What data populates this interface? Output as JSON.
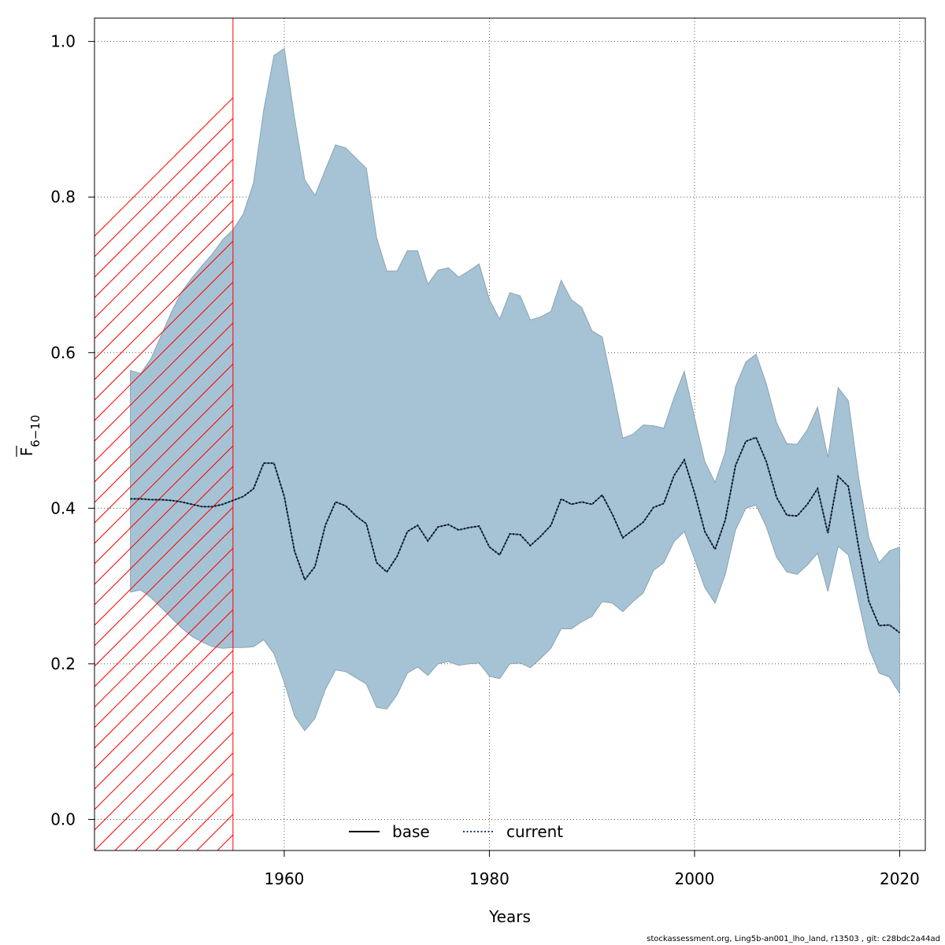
{
  "chart_data": {
    "type": "area",
    "title": "",
    "xlabel": "Years",
    "ylabel_main": "F",
    "ylabel_sub": "6−10",
    "xlim": [
      1941.5,
      2022.5
    ],
    "ylim": [
      -0.04,
      1.03
    ],
    "xticks": [
      1960,
      1980,
      2000,
      2020
    ],
    "yticks": [
      0.0,
      0.2,
      0.4,
      0.6,
      0.8,
      1.0
    ],
    "ytick_labels": [
      "0.0",
      "0.2",
      "0.4",
      "0.6",
      "0.8",
      "1.0"
    ],
    "grid": true,
    "hatched_region": {
      "x_start": 1941.5,
      "x_end": 1955,
      "color": "#ff0000"
    },
    "band_color": "#a5c3d5",
    "legend": {
      "placement": "bottom-center",
      "entries": [
        {
          "label": "base",
          "color": "#000000",
          "style": "solid"
        },
        {
          "label": "current",
          "color": "#1f3f6e",
          "style": "dotted"
        }
      ]
    },
    "x": [
      1945,
      1946,
      1947,
      1948,
      1949,
      1950,
      1951,
      1952,
      1953,
      1954,
      1955,
      1956,
      1957,
      1958,
      1959,
      1960,
      1961,
      1962,
      1963,
      1964,
      1965,
      1966,
      1967,
      1968,
      1969,
      1970,
      1971,
      1972,
      1973,
      1974,
      1975,
      1976,
      1977,
      1978,
      1979,
      1980,
      1981,
      1982,
      1983,
      1984,
      1985,
      1986,
      1987,
      1988,
      1989,
      1990,
      1991,
      1992,
      1993,
      1994,
      1995,
      1996,
      1997,
      1998,
      1999,
      2000,
      2001,
      2002,
      2003,
      2004,
      2005,
      2006,
      2007,
      2008,
      2009,
      2010,
      2011,
      2012,
      2013,
      2014,
      2015,
      2016,
      2017,
      2018,
      2019,
      2020
    ],
    "series": [
      {
        "name": "current",
        "values": [
          0.412,
          0.412,
          0.411,
          0.411,
          0.41,
          0.408,
          0.405,
          0.402,
          0.402,
          0.405,
          0.41,
          0.415,
          0.425,
          0.458,
          0.458,
          0.415,
          0.345,
          0.308,
          0.325,
          0.378,
          0.408,
          0.403,
          0.39,
          0.38,
          0.33,
          0.318,
          0.338,
          0.37,
          0.378,
          0.358,
          0.376,
          0.379,
          0.372,
          0.375,
          0.377,
          0.35,
          0.34,
          0.367,
          0.366,
          0.352,
          0.364,
          0.378,
          0.412,
          0.405,
          0.408,
          0.405,
          0.417,
          0.392,
          0.362,
          0.372,
          0.382,
          0.401,
          0.406,
          0.442,
          0.462,
          0.42,
          0.37,
          0.347,
          0.385,
          0.455,
          0.486,
          0.491,
          0.46,
          0.414,
          0.391,
          0.39,
          0.405,
          0.425,
          0.368,
          0.441,
          0.428,
          0.35,
          0.28,
          0.249,
          0.25,
          0.24
        ]
      },
      {
        "name": "upper",
        "values": [
          0.577,
          0.573,
          0.592,
          0.622,
          0.652,
          0.678,
          0.696,
          0.712,
          0.727,
          0.745,
          0.758,
          0.778,
          0.818,
          0.912,
          0.982,
          0.991,
          0.902,
          0.822,
          0.802,
          0.835,
          0.867,
          0.863,
          0.85,
          0.837,
          0.748,
          0.705,
          0.705,
          0.731,
          0.731,
          0.688,
          0.706,
          0.709,
          0.697,
          0.705,
          0.714,
          0.668,
          0.643,
          0.677,
          0.673,
          0.642,
          0.646,
          0.653,
          0.693,
          0.668,
          0.658,
          0.628,
          0.62,
          0.558,
          0.49,
          0.495,
          0.507,
          0.506,
          0.503,
          0.542,
          0.576,
          0.517,
          0.46,
          0.433,
          0.472,
          0.556,
          0.588,
          0.598,
          0.56,
          0.51,
          0.483,
          0.482,
          0.501,
          0.53,
          0.465,
          0.555,
          0.538,
          0.44,
          0.362,
          0.33,
          0.345,
          0.35
        ]
      },
      {
        "name": "lower",
        "values": [
          0.292,
          0.295,
          0.285,
          0.272,
          0.259,
          0.246,
          0.235,
          0.228,
          0.222,
          0.22,
          0.221,
          0.221,
          0.222,
          0.231,
          0.213,
          0.176,
          0.133,
          0.114,
          0.13,
          0.167,
          0.192,
          0.19,
          0.182,
          0.174,
          0.144,
          0.142,
          0.16,
          0.188,
          0.196,
          0.185,
          0.2,
          0.203,
          0.198,
          0.2,
          0.201,
          0.184,
          0.181,
          0.2,
          0.201,
          0.195,
          0.207,
          0.22,
          0.245,
          0.245,
          0.254,
          0.261,
          0.28,
          0.278,
          0.267,
          0.28,
          0.291,
          0.32,
          0.33,
          0.357,
          0.37,
          0.335,
          0.298,
          0.278,
          0.315,
          0.372,
          0.4,
          0.404,
          0.376,
          0.337,
          0.318,
          0.315,
          0.327,
          0.342,
          0.293,
          0.351,
          0.34,
          0.28,
          0.22,
          0.188,
          0.183,
          0.162
        ]
      }
    ]
  },
  "footer_text": "stockassessment.org, Ling5b-an001_lho_land, r13503 , git: c28bdc2a44ad"
}
